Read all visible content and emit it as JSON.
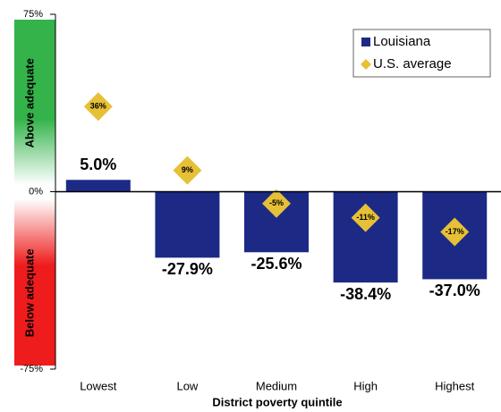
{
  "chart_data": {
    "type": "bar",
    "x_label": "District poverty quintile",
    "categories": [
      "Lowest",
      "Low",
      "Medium",
      "High",
      "Highest"
    ],
    "series": [
      {
        "name": "Louisiana",
        "type": "bar",
        "color": "#1c2a86",
        "values": [
          5.0,
          -27.9,
          -25.6,
          -38.4,
          -37.0
        ],
        "value_labels": [
          "5.0%",
          "-27.9%",
          "-25.6%",
          "-38.4%",
          "-37.0%"
        ]
      },
      {
        "name": "U.S. average",
        "type": "diamond",
        "color": "#e6c036",
        "values": [
          36,
          9,
          -5,
          -11,
          -17
        ],
        "value_labels": [
          "36%",
          "9%",
          "-5%",
          "-11%",
          "-17%"
        ]
      }
    ],
    "ylim": [
      -75,
      75
    ],
    "yticks": [
      {
        "value": -75,
        "label": "-75%"
      },
      {
        "value": 0,
        "label": "0%"
      },
      {
        "value": 75,
        "label": "75%"
      }
    ],
    "zones": [
      {
        "label": "Above adequate",
        "color": "#33b34a"
      },
      {
        "label": "Below adequate",
        "color": "#ee1c1c"
      }
    ],
    "legend": "top-right"
  }
}
